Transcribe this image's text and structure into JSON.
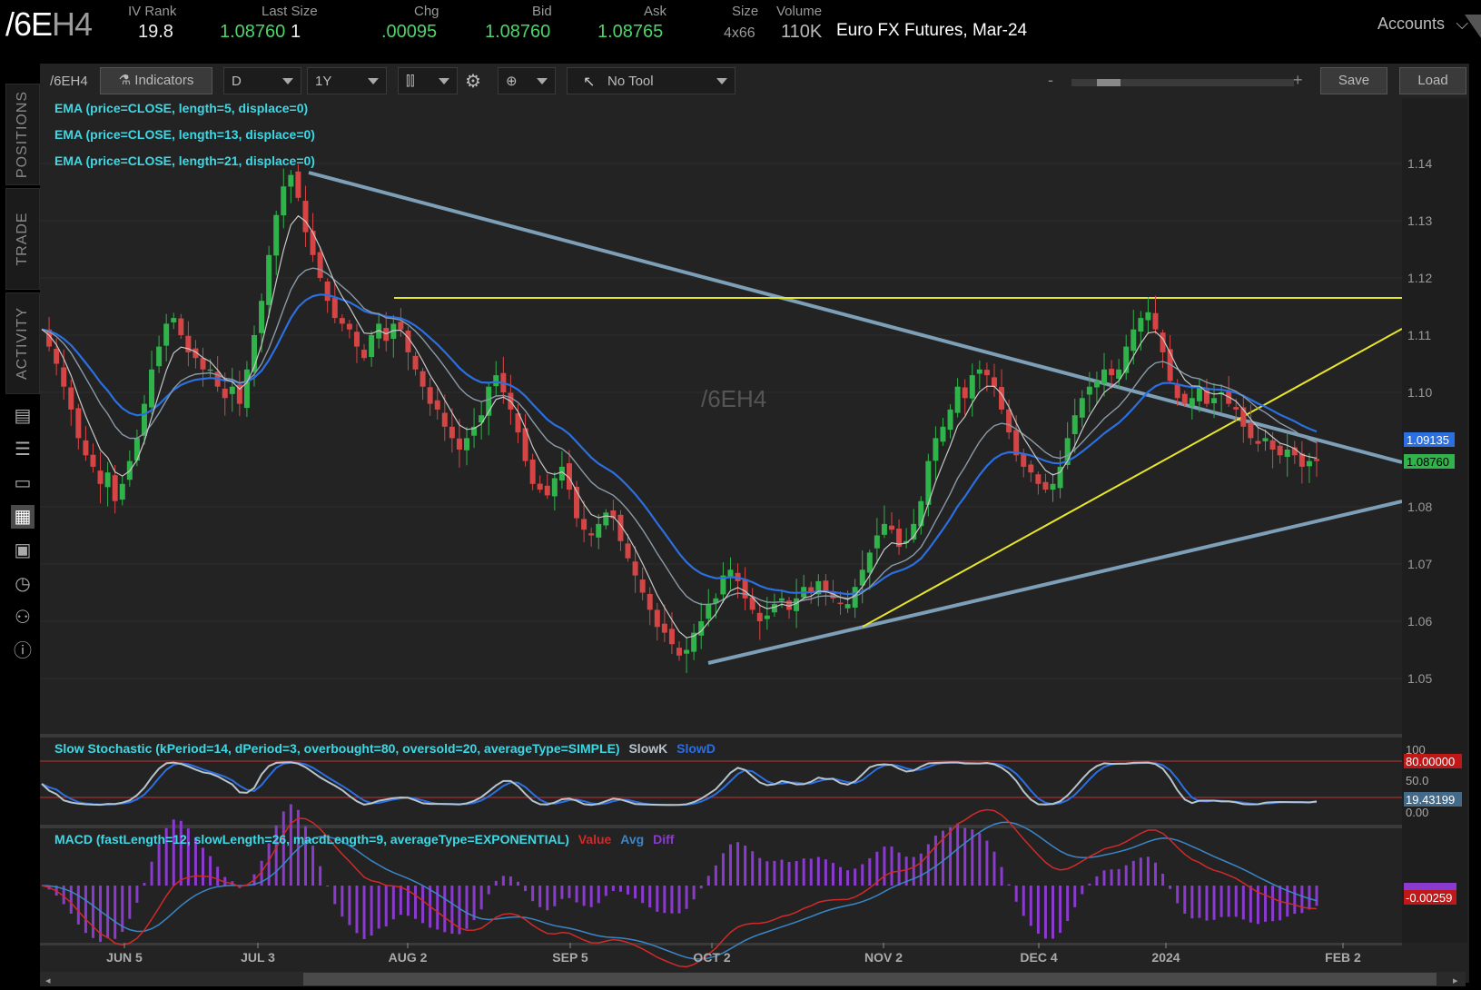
{
  "header": {
    "symbol_main": "/6E",
    "symbol_suffix": "H4",
    "iv_rank_label": "IV Rank",
    "iv_rank": "19.8",
    "last_size_label": "Last Size",
    "last": "1.08760",
    "last_qty": "1",
    "chg_label": "Chg",
    "chg": ".00095",
    "bid_label": "Bid",
    "bid": "1.08760",
    "ask_label": "Ask",
    "ask": "1.08765",
    "size_label": "Size",
    "size": "4x66",
    "volume_label": "Volume",
    "volume": "110K",
    "description": "Euro FX Futures, Mar-24",
    "accounts": "Accounts"
  },
  "sidebar": {
    "tabs": [
      "POSITIONS",
      "TRADE",
      "ACTIVITY"
    ],
    "icons": [
      "news-icon",
      "list-icon",
      "tv-icon",
      "chart-icon",
      "grid-icon",
      "history-icon",
      "community-icon",
      "help-icon"
    ]
  },
  "toolbar": {
    "symbol": "/6EH4",
    "indicators": "Indicators",
    "aggregation": "D",
    "period": "1Y",
    "tool": "No Tool",
    "zoom_minus": "-",
    "zoom_plus": "+",
    "save": "Save",
    "load": "Load"
  },
  "studies": {
    "ema5": "EMA (price=CLOSE, length=5, displace=0)",
    "ema13": "EMA (price=CLOSE, length=13, displace=0)",
    "ema21": "EMA (price=CLOSE, length=21, displace=0)",
    "stoch": "Slow Stochastic (kPeriod=14, dPeriod=3, overbought=80, oversold=20, averageType=SIMPLE)",
    "stoch_k": "SlowK",
    "stoch_d": "SlowD",
    "macd": "MACD (fastLength=12, slowLength=26, macdLength=9, averageType=EXPONENTIAL)",
    "macd_value": "Value",
    "macd_avg": "Avg",
    "macd_diff": "Diff"
  },
  "watermark": "/6EH4",
  "chart_data": {
    "type": "candlestick",
    "y_ticks": [
      "1.14",
      "1.13",
      "1.12",
      "1.11",
      "1.10",
      "1.08",
      "1.07",
      "1.06",
      "1.05"
    ],
    "ylim": [
      1.04,
      1.145
    ],
    "x_ticks": [
      "JUN 5",
      "JUL 3",
      "AUG 2",
      "SEP 5",
      "OCT 2",
      "NOV 2",
      "DEC 4",
      "2024",
      "FEB 2"
    ],
    "price_labels": {
      "ema": "1.09135",
      "last": "1.08760"
    },
    "stoch_labels": {
      "top": "100",
      "overbought": "80.00000",
      "mid": "50.0",
      "current": "19.43199",
      "bottom": "0.00"
    },
    "macd_labels": {
      "current": "-0.00259"
    },
    "colors": {
      "up": "#2fb34a",
      "down": "#d64545",
      "ema5": "#c8c8c8",
      "ema13": "#8a9aa8",
      "ema21": "#2b6fe0",
      "resistance": "#e9e62a",
      "trend": "#7e9fb8"
    },
    "close": [
      1.111,
      1.108,
      1.105,
      1.101,
      1.097,
      1.092,
      1.089,
      1.087,
      1.084,
      1.086,
      1.081,
      1.084,
      1.088,
      1.092,
      1.098,
      1.104,
      1.108,
      1.112,
      1.113,
      1.11,
      1.107,
      1.106,
      1.104,
      1.104,
      1.101,
      1.099,
      1.101,
      1.098,
      1.104,
      1.11,
      1.116,
      1.124,
      1.131,
      1.136,
      1.138,
      1.134,
      1.128,
      1.124,
      1.12,
      1.116,
      1.113,
      1.112,
      1.111,
      1.108,
      1.106,
      1.11,
      1.112,
      1.109,
      1.112,
      1.111,
      1.107,
      1.104,
      1.101,
      1.098,
      1.097,
      1.094,
      1.092,
      1.09,
      1.092,
      1.094,
      1.096,
      1.101,
      1.103,
      1.1,
      1.097,
      1.093,
      1.088,
      1.084,
      1.083,
      1.082,
      1.085,
      1.087,
      1.083,
      1.078,
      1.076,
      1.075,
      1.077,
      1.079,
      1.078,
      1.074,
      1.071,
      1.068,
      1.065,
      1.062,
      1.059,
      1.058,
      1.056,
      1.054,
      1.055,
      1.058,
      1.06,
      1.063,
      1.064,
      1.068,
      1.069,
      1.067,
      1.064,
      1.062,
      1.06,
      1.061,
      1.063,
      1.064,
      1.062,
      1.064,
      1.066,
      1.065,
      1.067,
      1.065,
      1.064,
      1.063,
      1.063,
      1.066,
      1.069,
      1.072,
      1.075,
      1.077,
      1.076,
      1.073,
      1.074,
      1.077,
      1.081,
      1.088,
      1.092,
      1.094,
      1.097,
      1.101,
      1.099,
      1.103,
      1.104,
      1.103,
      1.101,
      1.097,
      1.093,
      1.089,
      1.087,
      1.086,
      1.084,
      1.083,
      1.084,
      1.087,
      1.092,
      1.096,
      1.099,
      1.101,
      1.102,
      1.104,
      1.103,
      1.104,
      1.108,
      1.111,
      1.113,
      1.114,
      1.111,
      1.107,
      1.102,
      1.099,
      1.098,
      1.099,
      1.101,
      1.098,
      1.099,
      1.1,
      1.098,
      1.097,
      1.094,
      1.092,
      1.091,
      1.092,
      1.09,
      1.089,
      1.09,
      1.089,
      1.087,
      1.088,
      1.088
    ]
  }
}
